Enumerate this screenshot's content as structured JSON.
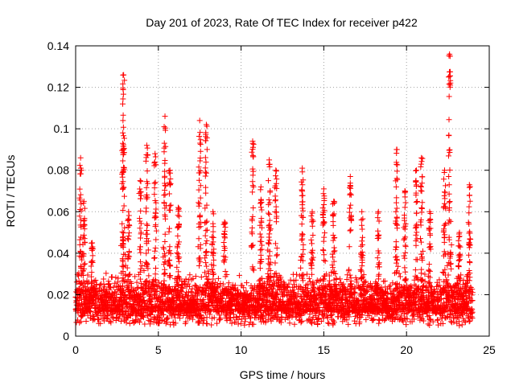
{
  "chart_data": {
    "type": "scatter",
    "title": "Day 201 of 2023, Rate Of TEC Index for receiver p422",
    "xlabel": "GPS time / hours",
    "ylabel": "ROTI / TECUs",
    "xlim": [
      0,
      25
    ],
    "ylim": [
      0,
      0.14
    ],
    "xticks": [
      0,
      5,
      10,
      15,
      20,
      25
    ],
    "yticks": [
      0,
      0.02,
      0.04,
      0.06,
      0.08,
      0.1,
      0.12,
      0.14
    ],
    "xtick_labels": [
      "0",
      "5",
      "10",
      "15",
      "20",
      "25"
    ],
    "ytick_labels": [
      "0",
      "0.02",
      "0.04",
      "0.06",
      "0.08",
      "0.1",
      "0.12",
      "0.14"
    ],
    "grid": true,
    "marker": "+",
    "color": "#ff0000",
    "x_range_data": [
      0,
      24
    ],
    "bursts": [
      {
        "x": 0.3,
        "y": 0.086
      },
      {
        "x": 0.5,
        "y": 0.065
      },
      {
        "x": 1.0,
        "y": 0.045
      },
      {
        "x": 2.9,
        "y": 0.126
      },
      {
        "x": 2.85,
        "y": 0.093
      },
      {
        "x": 3.2,
        "y": 0.06
      },
      {
        "x": 3.9,
        "y": 0.075
      },
      {
        "x": 4.3,
        "y": 0.092
      },
      {
        "x": 4.8,
        "y": 0.088
      },
      {
        "x": 5.4,
        "y": 0.106
      },
      {
        "x": 5.7,
        "y": 0.08
      },
      {
        "x": 6.2,
        "y": 0.062
      },
      {
        "x": 7.5,
        "y": 0.104
      },
      {
        "x": 7.9,
        "y": 0.102
      },
      {
        "x": 8.3,
        "y": 0.06
      },
      {
        "x": 9.0,
        "y": 0.055
      },
      {
        "x": 10.7,
        "y": 0.094
      },
      {
        "x": 11.2,
        "y": 0.072
      },
      {
        "x": 11.7,
        "y": 0.085
      },
      {
        "x": 12.1,
        "y": 0.08
      },
      {
        "x": 13.7,
        "y": 0.081
      },
      {
        "x": 14.3,
        "y": 0.06
      },
      {
        "x": 15.0,
        "y": 0.071
      },
      {
        "x": 15.6,
        "y": 0.065
      },
      {
        "x": 16.6,
        "y": 0.077
      },
      {
        "x": 17.3,
        "y": 0.06
      },
      {
        "x": 18.3,
        "y": 0.06
      },
      {
        "x": 19.4,
        "y": 0.09
      },
      {
        "x": 19.9,
        "y": 0.07
      },
      {
        "x": 20.6,
        "y": 0.08
      },
      {
        "x": 20.9,
        "y": 0.086
      },
      {
        "x": 21.4,
        "y": 0.06
      },
      {
        "x": 22.3,
        "y": 0.08
      },
      {
        "x": 22.6,
        "y": 0.136
      },
      {
        "x": 23.2,
        "y": 0.05
      },
      {
        "x": 23.8,
        "y": 0.073
      }
    ]
  }
}
